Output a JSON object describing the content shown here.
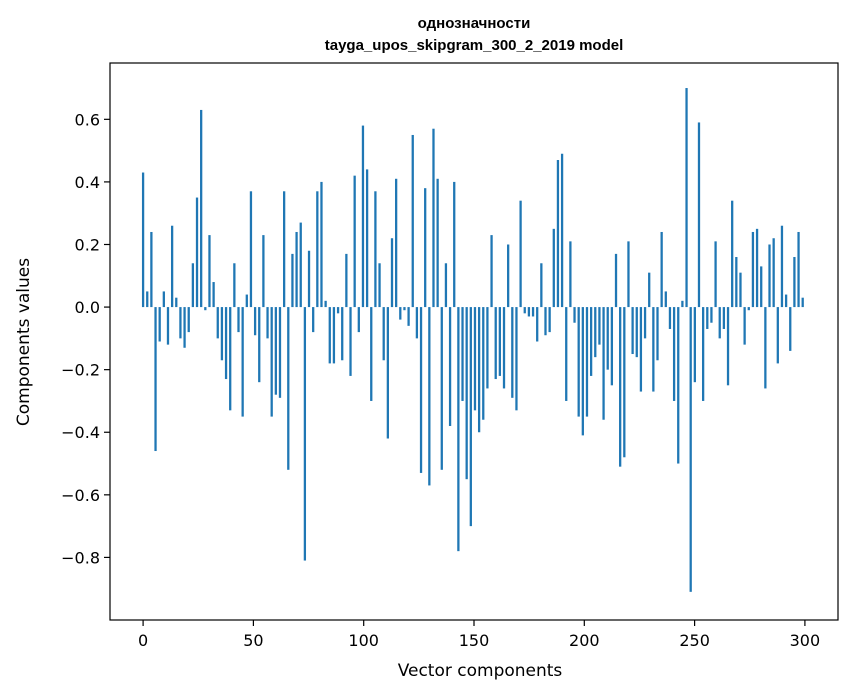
{
  "chart_data": {
    "type": "bar",
    "title_line1": "однозначности",
    "title_line2": "tayga_upos_skipgram_300_2_2019 model",
    "xlabel": "Vector components",
    "ylabel": "Components values",
    "xlim": [
      -15,
      315
    ],
    "ylim": [
      -1.0,
      0.78
    ],
    "xticks": [
      0,
      50,
      100,
      150,
      200,
      250,
      300
    ],
    "xtick_labels": [
      "0",
      "50",
      "100",
      "150",
      "200",
      "250",
      "300"
    ],
    "yticks": [
      -0.8,
      -0.6,
      -0.4,
      -0.2,
      0.0,
      0.2,
      0.4,
      0.6
    ],
    "ytick_labels": [
      "−0.8",
      "−0.6",
      "−0.4",
      "−0.2",
      "0.0",
      "0.2",
      "0.4",
      "0.6"
    ],
    "bar_color": "#1f77b4",
    "grid": false,
    "values": [
      0.43,
      0.05,
      0.24,
      -0.46,
      -0.11,
      0.05,
      -0.12,
      0.26,
      0.03,
      -0.1,
      -0.13,
      -0.08,
      0.14,
      0.35,
      0.63,
      -0.01,
      0.23,
      0.08,
      -0.1,
      -0.17,
      -0.23,
      -0.33,
      0.14,
      -0.08,
      -0.35,
      0.04,
      0.37,
      -0.09,
      -0.24,
      0.23,
      -0.1,
      -0.35,
      -0.28,
      -0.29,
      0.37,
      -0.52,
      0.17,
      0.24,
      0.27,
      -0.81,
      0.18,
      -0.08,
      0.37,
      0.4,
      0.02,
      -0.18,
      -0.18,
      -0.02,
      -0.17,
      0.17,
      -0.22,
      0.42,
      -0.08,
      0.58,
      0.44,
      -0.3,
      0.37,
      0.14,
      -0.17,
      -0.42,
      0.22,
      0.41,
      -0.04,
      -0.01,
      -0.06,
      0.55,
      -0.1,
      -0.53,
      0.38,
      -0.57,
      0.57,
      0.41,
      -0.52,
      0.14,
      -0.38,
      0.4,
      -0.78,
      -0.3,
      -0.55,
      -0.7,
      -0.33,
      -0.4,
      -0.36,
      -0.26,
      0.23,
      -0.23,
      -0.22,
      -0.26,
      0.2,
      -0.29,
      -0.33,
      0.34,
      -0.02,
      -0.03,
      -0.03,
      -0.11,
      0.14,
      -0.09,
      -0.08,
      0.25,
      0.47,
      0.49,
      -0.3,
      0.21,
      -0.05,
      -0.35,
      -0.41,
      -0.35,
      -0.22,
      -0.16,
      -0.12,
      -0.36,
      -0.2,
      -0.25,
      0.17,
      -0.51,
      -0.48,
      0.21,
      -0.15,
      -0.16,
      -0.27,
      -0.1,
      0.11,
      -0.27,
      -0.17,
      0.24,
      0.05,
      -0.07,
      -0.3,
      -0.5,
      0.02,
      0.7,
      -0.91,
      -0.24,
      0.59,
      -0.3,
      -0.07,
      -0.05,
      0.21,
      -0.1,
      -0.07,
      -0.25,
      0.34,
      0.16,
      0.11,
      -0.12,
      -0.01,
      0.24,
      0.25,
      0.13,
      -0.26,
      0.2,
      0.22,
      -0.18,
      0.26,
      0.04,
      -0.14,
      0.16,
      0.24,
      0.03
    ]
  }
}
